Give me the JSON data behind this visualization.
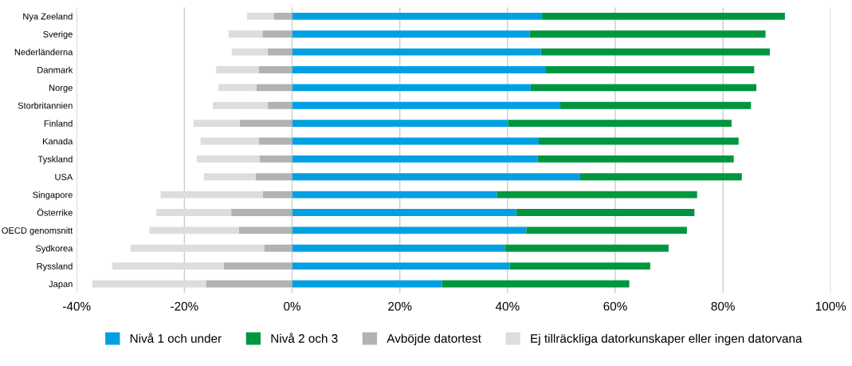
{
  "chart_data": {
    "type": "bar",
    "orientation": "horizontal",
    "stacked": true,
    "categories": [
      "Nya Zeeland",
      "Sverige",
      "Nederländerna",
      "Danmark",
      "Norge",
      "Storbritannien",
      "Finland",
      "Kanada",
      "Tyskland",
      "USA",
      "Singapore",
      "Österrike",
      "OECD genomsnitt",
      "Sydkorea",
      "Ryssland",
      "Japan"
    ],
    "series": [
      {
        "name": "Nivå 1 och under",
        "color": "#00a0e3",
        "values": [
          46.4,
          44.1,
          46.2,
          47.0,
          44.3,
          49.8,
          40.1,
          45.8,
          45.6,
          53.5,
          38.0,
          41.6,
          43.5,
          39.5,
          40.4,
          27.8
        ]
      },
      {
        "name": "Nivå 2 och 3",
        "color": "#00963f",
        "values": [
          45.1,
          43.8,
          42.5,
          38.8,
          41.9,
          35.4,
          41.5,
          37.1,
          36.4,
          30.0,
          37.2,
          33.1,
          29.8,
          30.4,
          26.1,
          34.8
        ]
      },
      {
        "name": "Avböjde datortest",
        "color": "#b0b3b3",
        "values": [
          -3.4,
          -5.5,
          -4.5,
          -6.2,
          -6.6,
          -4.5,
          -9.7,
          -6.2,
          -6.0,
          -6.8,
          -5.4,
          -11.3,
          -9.9,
          -5.2,
          -12.7,
          -16.0
        ]
      },
      {
        "name": "Ej tillräckliga datorkunskaper eller ingen datorvana",
        "color": "#dcdddd",
        "values": [
          -5.0,
          -6.3,
          -6.7,
          -7.9,
          -7.1,
          -10.2,
          -8.6,
          -10.8,
          -11.7,
          -9.6,
          -19.0,
          -13.9,
          -16.6,
          -24.8,
          -20.7,
          -21.1
        ]
      }
    ],
    "xlim": [
      -40,
      100
    ],
    "xticks": [
      {
        "value": -40,
        "label": "-40%"
      },
      {
        "value": -20,
        "label": "-20%"
      },
      {
        "value": 0,
        "label": "0%"
      },
      {
        "value": 20,
        "label": "20%"
      },
      {
        "value": 40,
        "label": "40%"
      },
      {
        "value": 60,
        "label": "60%"
      },
      {
        "value": 80,
        "label": "80%"
      },
      {
        "value": 100,
        "label": "100%"
      }
    ],
    "grid": "x",
    "legend": "bottom"
  }
}
